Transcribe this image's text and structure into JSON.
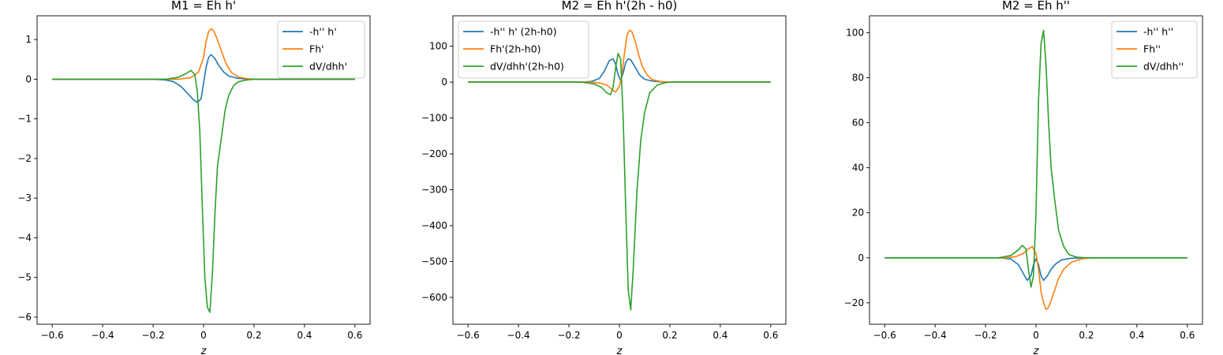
{
  "colors": {
    "blue": "#1f77b4",
    "orange": "#ff7f0e",
    "green": "#2ca02c"
  },
  "chart_data": [
    {
      "type": "line",
      "title": "M1 = Eh h'",
      "xlabel": "z",
      "xlim": [
        -0.66,
        0.66
      ],
      "ylim": [
        -6.18,
        1.6
      ],
      "xticks": [
        -0.6,
        -0.4,
        -0.2,
        0.0,
        0.2,
        0.4,
        0.6
      ],
      "yticks": [
        -6,
        -5,
        -4,
        -3,
        -2,
        -1,
        0,
        1
      ],
      "legend_position": "upper-right",
      "series": [
        {
          "name": "-h'' h'",
          "color": "#1f77b4",
          "x": [
            -0.6,
            -0.2,
            -0.15,
            -0.12,
            -0.09,
            -0.06,
            -0.04,
            -0.025,
            -0.01,
            0.0,
            0.01,
            0.02,
            0.03,
            0.045,
            0.06,
            0.08,
            0.1,
            0.13,
            0.16,
            0.2,
            0.6
          ],
          "y": [
            0,
            0,
            -0.02,
            -0.06,
            -0.18,
            -0.38,
            -0.52,
            -0.58,
            -0.5,
            -0.1,
            0.3,
            0.55,
            0.62,
            0.52,
            0.35,
            0.18,
            0.08,
            0.03,
            0.01,
            0,
            0
          ]
        },
        {
          "name": "Fh'",
          "color": "#ff7f0e",
          "x": [
            -0.6,
            -0.1,
            -0.05,
            -0.02,
            0.0,
            0.01,
            0.02,
            0.03,
            0.04,
            0.055,
            0.07,
            0.09,
            0.11,
            0.14,
            0.18,
            0.22,
            0.6
          ],
          "y": [
            0,
            0,
            0.04,
            0.18,
            0.55,
            0.95,
            1.2,
            1.27,
            1.22,
            1.0,
            0.72,
            0.38,
            0.17,
            0.05,
            0.01,
            0,
            0
          ]
        },
        {
          "name": "dV/dhh'",
          "color": "#2ca02c",
          "x": [
            -0.6,
            -0.15,
            -0.1,
            -0.07,
            -0.05,
            -0.035,
            -0.025,
            -0.015,
            -0.005,
            0.005,
            0.015,
            0.025,
            0.035,
            0.045,
            0.055,
            0.07,
            0.085,
            0.1,
            0.12,
            0.14,
            0.17,
            0.2,
            0.6
          ],
          "y": [
            0,
            0,
            0.05,
            0.14,
            0.22,
            0.12,
            -0.3,
            -1.3,
            -3.2,
            -5.0,
            -5.75,
            -5.88,
            -4.9,
            -3.4,
            -2.2,
            -1.5,
            -0.8,
            -0.4,
            -0.15,
            -0.06,
            -0.02,
            0,
            0
          ]
        }
      ]
    },
    {
      "type": "line",
      "title": "M2 = Eh h'(2h - h0)",
      "xlabel": "z",
      "xlim": [
        -0.66,
        0.66
      ],
      "ylim": [
        -675,
        185
      ],
      "xticks": [
        -0.6,
        -0.4,
        -0.2,
        0.0,
        0.2,
        0.4,
        0.6
      ],
      "yticks": [
        -600,
        -500,
        -400,
        -300,
        -200,
        -100,
        0,
        100
      ],
      "legend_position": "upper-left",
      "series": [
        {
          "name": "-h'' h' (2h-h0)",
          "color": "#1f77b4",
          "x": [
            -0.6,
            -0.15,
            -0.11,
            -0.08,
            -0.06,
            -0.04,
            -0.025,
            -0.015,
            -0.005,
            0.005,
            0.015,
            0.025,
            0.035,
            0.045,
            0.06,
            0.08,
            0.1,
            0.13,
            0.16,
            0.2,
            0.6
          ],
          "y": [
            0,
            0,
            2,
            10,
            30,
            60,
            65,
            50,
            20,
            5,
            25,
            55,
            65,
            62,
            45,
            20,
            8,
            3,
            1,
            0,
            0
          ]
        },
        {
          "name": "Fh'(2h-h0)",
          "color": "#ff7f0e",
          "x": [
            -0.6,
            -0.12,
            -0.08,
            -0.05,
            -0.03,
            -0.015,
            0.0,
            0.01,
            0.02,
            0.03,
            0.04,
            0.05,
            0.06,
            0.075,
            0.09,
            0.11,
            0.13,
            0.16,
            0.2,
            0.6
          ],
          "y": [
            0,
            0,
            -2,
            -8,
            -20,
            -28,
            -12,
            20,
            80,
            130,
            145,
            140,
            120,
            80,
            45,
            20,
            7,
            2,
            0,
            0
          ]
        },
        {
          "name": "dV/dhh'(2h-h0)",
          "color": "#2ca02c",
          "x": [
            -0.6,
            -0.15,
            -0.1,
            -0.07,
            -0.05,
            -0.035,
            -0.025,
            -0.015,
            -0.005,
            0.005,
            0.015,
            0.025,
            0.035,
            0.045,
            0.055,
            0.07,
            0.085,
            0.1,
            0.12,
            0.15,
            0.18,
            0.2,
            0.6
          ],
          "y": [
            0,
            0,
            -5,
            -15,
            -30,
            -35,
            -15,
            40,
            80,
            65,
            -100,
            -350,
            -580,
            -635,
            -520,
            -300,
            -160,
            -85,
            -30,
            -8,
            -2,
            0,
            0
          ]
        }
      ]
    },
    {
      "type": "line",
      "title": "M2 = Eh h''",
      "xlabel": "z",
      "xlim": [
        -0.66,
        0.66
      ],
      "ylim": [
        -29.5,
        107.5
      ],
      "xticks": [
        -0.6,
        -0.4,
        -0.2,
        0.0,
        0.2,
        0.4,
        0.6
      ],
      "yticks": [
        -20,
        0,
        20,
        40,
        60,
        80,
        100
      ],
      "legend_position": "upper-right",
      "series": [
        {
          "name": "-h'' h''",
          "color": "#1f77b4",
          "x": [
            -0.6,
            -0.15,
            -0.1,
            -0.07,
            -0.05,
            -0.035,
            -0.02,
            -0.01,
            0.0,
            0.01,
            0.02,
            0.03,
            0.045,
            0.06,
            0.08,
            0.1,
            0.13,
            0.16,
            0.2,
            0.6
          ],
          "y": [
            0,
            0,
            -0.5,
            -3,
            -7,
            -10,
            -8,
            -3,
            -0.5,
            -3,
            -8,
            -10,
            -8,
            -5,
            -2.5,
            -1,
            -0.3,
            -0.1,
            0,
            0
          ]
        },
        {
          "name": "Fh''",
          "color": "#ff7f0e",
          "x": [
            -0.6,
            -0.12,
            -0.08,
            -0.05,
            -0.03,
            -0.015,
            0.0,
            0.01,
            0.02,
            0.03,
            0.04,
            0.05,
            0.06,
            0.075,
            0.09,
            0.11,
            0.14,
            0.18,
            0.22,
            0.6
          ],
          "y": [
            0,
            0,
            0.5,
            2,
            4,
            5,
            2,
            -5,
            -15,
            -20,
            -23,
            -22,
            -19,
            -14,
            -9,
            -5,
            -2,
            -0.5,
            0,
            0
          ]
        },
        {
          "name": "dV/dhh''",
          "color": "#2ca02c",
          "x": [
            -0.6,
            -0.15,
            -0.1,
            -0.07,
            -0.055,
            -0.04,
            -0.03,
            -0.02,
            -0.01,
            0.0,
            0.01,
            0.02,
            0.03,
            0.04,
            0.05,
            0.06,
            0.075,
            0.09,
            0.11,
            0.13,
            0.16,
            0.2,
            0.6
          ],
          "y": [
            0,
            0,
            1,
            3.5,
            5.5,
            4,
            -5,
            -13,
            -8,
            20,
            70,
            95,
            101,
            85,
            60,
            40,
            25,
            12,
            5,
            1.5,
            0.3,
            0,
            0
          ]
        }
      ]
    }
  ]
}
